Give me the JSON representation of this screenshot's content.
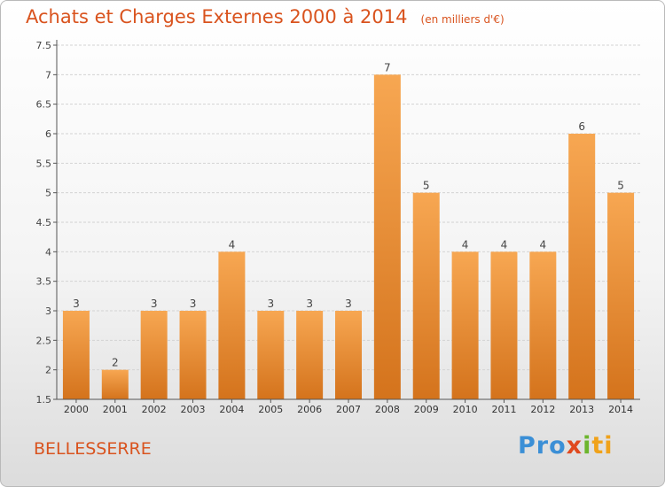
{
  "header": {
    "title": "Achats et Charges Externes 2000 à 2014",
    "subtitle": "(en milliers d'€)"
  },
  "footer": {
    "commune": "BELLESSERRE",
    "logo_text": [
      "Pro",
      "x",
      "i",
      "ti"
    ]
  },
  "colors": {
    "bar_light": "#f7a752",
    "bar_dark": "#d4731c",
    "title": "#d9531e",
    "grid": "#d3d3d3"
  },
  "chart_data": {
    "type": "bar",
    "categories": [
      "2000",
      "2001",
      "2002",
      "2003",
      "2004",
      "2005",
      "2006",
      "2007",
      "2008",
      "2009",
      "2010",
      "2011",
      "2012",
      "2013",
      "2014"
    ],
    "values": [
      3,
      2,
      3,
      3,
      4,
      3,
      3,
      3,
      7,
      5,
      4,
      4,
      4,
      6,
      5
    ],
    "labels": [
      "3",
      "2",
      "3",
      "3",
      "4",
      "3",
      "3",
      "3",
      "7",
      "5",
      "4",
      "4",
      "4",
      "6",
      "5"
    ],
    "yticks": [
      "1.5",
      "2",
      "2.5",
      "3",
      "3.5",
      "4",
      "4.5",
      "5",
      "5.5",
      "6",
      "6.5",
      "7",
      "7.5"
    ],
    "ylim": [
      1.5,
      7.5
    ],
    "grid": true
  }
}
